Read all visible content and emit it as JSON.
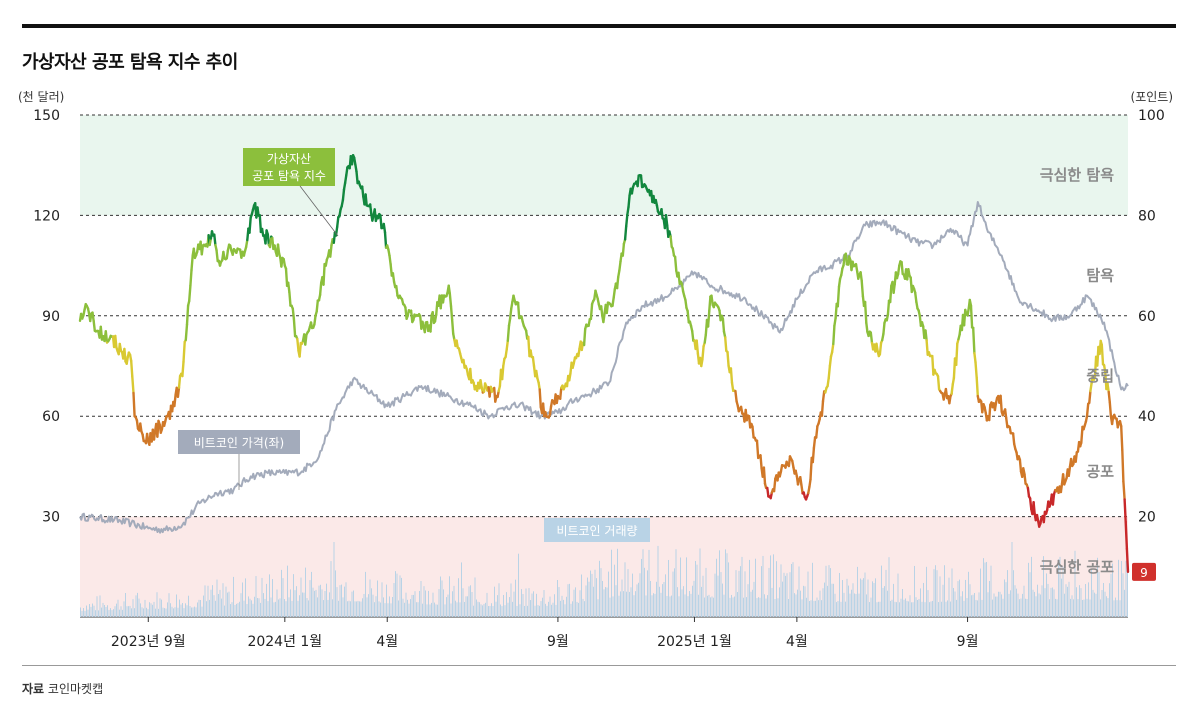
{
  "header": {
    "title": "가상자산 공포 탐욕 지수 추이",
    "unit_left": "(천 달러)",
    "unit_right": "(포인트)"
  },
  "footer": {
    "source_label": "자료",
    "source_value": "코인마켓캡"
  },
  "colors": {
    "extreme_greed_band": "#e9f6ee",
    "extreme_fear_band": "#fbe9e8",
    "extreme_greed": "#12873e",
    "greed": "#8cbf3c",
    "neutral": "#d9c933",
    "fear": "#d07828",
    "extreme_fear": "#c8282a",
    "btc_price": "#a3abbb",
    "volume": "#b9d3e6",
    "badge": "#d0302c"
  },
  "chart_data": {
    "type": "line",
    "title": "가상자산 공포 탐욕 지수 추이",
    "x_tick_labels": [
      "2023년 9월",
      "2024년 1월",
      "4월",
      "9월",
      "2025년 1월",
      "4월",
      "9월"
    ],
    "x_tick_months": [
      2,
      6,
      9,
      14,
      18,
      21,
      26
    ],
    "x_range_months": [
      0,
      30.7
    ],
    "left_axis": {
      "label": "(천 달러)",
      "ticks": [
        30,
        60,
        90,
        120,
        150
      ],
      "range": [
        0,
        150
      ]
    },
    "right_axis": {
      "label": "(포인트)",
      "ticks": [
        20,
        40,
        60,
        80,
        100
      ],
      "range": [
        0,
        100
      ]
    },
    "zones": [
      {
        "name": "극심한 탐욕",
        "from": 75,
        "to": 100
      },
      {
        "name": "탐욕",
        "from": 55,
        "to": 75
      },
      {
        "name": "중립",
        "from": 45,
        "to": 55
      },
      {
        "name": "공포",
        "from": 25,
        "to": 45
      },
      {
        "name": "극심한 공포",
        "from": 0,
        "to": 25
      }
    ],
    "series": [
      {
        "name": "가상자산 공포 탐욕 지수",
        "axis": "right",
        "points": [
          [
            0,
            59
          ],
          [
            0.2,
            62
          ],
          [
            0.5,
            57
          ],
          [
            0.9,
            56
          ],
          [
            1.2,
            53
          ],
          [
            1.5,
            51
          ],
          [
            1.6,
            40
          ],
          [
            1.8,
            37
          ],
          [
            2.0,
            35
          ],
          [
            2.2,
            37
          ],
          [
            2.5,
            39
          ],
          [
            2.7,
            41
          ],
          [
            3.0,
            48
          ],
          [
            3.3,
            72
          ],
          [
            3.6,
            74
          ],
          [
            3.9,
            76
          ],
          [
            4.1,
            70
          ],
          [
            4.4,
            74
          ],
          [
            4.8,
            72
          ],
          [
            5.1,
            82
          ],
          [
            5.4,
            76
          ],
          [
            5.7,
            74
          ],
          [
            6.0,
            70
          ],
          [
            6.2,
            62
          ],
          [
            6.4,
            53
          ],
          [
            6.7,
            57
          ],
          [
            6.9,
            60
          ],
          [
            7.2,
            70
          ],
          [
            7.5,
            76
          ],
          [
            7.8,
            88
          ],
          [
            8.0,
            92
          ],
          [
            8.2,
            86
          ],
          [
            8.4,
            82
          ],
          [
            8.6,
            80
          ],
          [
            8.8,
            80
          ],
          [
            9.0,
            74
          ],
          [
            9.3,
            64
          ],
          [
            9.6,
            60
          ],
          [
            9.9,
            60
          ],
          [
            10.2,
            57
          ],
          [
            10.5,
            62
          ],
          [
            10.8,
            66
          ],
          [
            11.0,
            54
          ],
          [
            11.3,
            50
          ],
          [
            11.6,
            46
          ],
          [
            11.9,
            46
          ],
          [
            12.2,
            44
          ],
          [
            12.4,
            50
          ],
          [
            12.7,
            64
          ],
          [
            13.0,
            58
          ],
          [
            13.3,
            50
          ],
          [
            13.6,
            40
          ],
          [
            13.8,
            42
          ],
          [
            14.0,
            44
          ],
          [
            14.3,
            48
          ],
          [
            14.6,
            52
          ],
          [
            14.9,
            58
          ],
          [
            15.1,
            65
          ],
          [
            15.3,
            60
          ],
          [
            15.6,
            62
          ],
          [
            15.9,
            72
          ],
          [
            16.1,
            84
          ],
          [
            16.4,
            88
          ],
          [
            16.7,
            84
          ],
          [
            16.9,
            82
          ],
          [
            17.2,
            78
          ],
          [
            17.4,
            72
          ],
          [
            17.7,
            64
          ],
          [
            17.9,
            58
          ],
          [
            18.2,
            50
          ],
          [
            18.5,
            64
          ],
          [
            18.8,
            60
          ],
          [
            19.0,
            50
          ],
          [
            19.3,
            41
          ],
          [
            19.6,
            40
          ],
          [
            19.9,
            32
          ],
          [
            20.2,
            24
          ],
          [
            20.5,
            28
          ],
          [
            20.8,
            32
          ],
          [
            21.0,
            28
          ],
          [
            21.3,
            24
          ],
          [
            21.6,
            38
          ],
          [
            21.9,
            46
          ],
          [
            22.1,
            58
          ],
          [
            22.4,
            72
          ],
          [
            22.7,
            70
          ],
          [
            22.9,
            67
          ],
          [
            23.1,
            56
          ],
          [
            23.4,
            52
          ],
          [
            23.7,
            63
          ],
          [
            24.0,
            70
          ],
          [
            24.3,
            68
          ],
          [
            24.6,
            60
          ],
          [
            24.9,
            52
          ],
          [
            25.2,
            45
          ],
          [
            25.5,
            44
          ],
          [
            25.8,
            58
          ],
          [
            26.1,
            62
          ],
          [
            26.3,
            44
          ],
          [
            26.6,
            40
          ],
          [
            26.9,
            44
          ],
          [
            27.2,
            38
          ],
          [
            27.5,
            32
          ],
          [
            27.8,
            24
          ],
          [
            28.1,
            18
          ],
          [
            28.4,
            22
          ],
          [
            28.7,
            26
          ],
          [
            29.0,
            30
          ],
          [
            29.3,
            34
          ],
          [
            29.6,
            45
          ],
          [
            29.9,
            55
          ],
          [
            30.2,
            40
          ],
          [
            30.5,
            38
          ],
          [
            30.7,
            9
          ]
        ]
      },
      {
        "name": "비트코인 가격",
        "axis": "left",
        "points": [
          [
            0,
            30
          ],
          [
            0.5,
            29.5
          ],
          [
            1.0,
            29
          ],
          [
            1.5,
            28
          ],
          [
            2.0,
            26.5
          ],
          [
            2.5,
            26
          ],
          [
            3.0,
            27.5
          ],
          [
            3.5,
            34
          ],
          [
            4.0,
            37
          ],
          [
            4.5,
            38
          ],
          [
            5.0,
            42
          ],
          [
            5.5,
            43
          ],
          [
            6.0,
            43
          ],
          [
            6.5,
            43.5
          ],
          [
            7.0,
            48
          ],
          [
            7.5,
            62
          ],
          [
            8.0,
            71
          ],
          [
            8.5,
            67
          ],
          [
            9.0,
            63
          ],
          [
            9.5,
            66
          ],
          [
            10.0,
            69
          ],
          [
            10.5,
            67
          ],
          [
            11.0,
            65
          ],
          [
            11.5,
            63
          ],
          [
            12.0,
            60
          ],
          [
            12.5,
            63
          ],
          [
            13.0,
            63
          ],
          [
            13.5,
            60
          ],
          [
            14.0,
            61
          ],
          [
            14.5,
            65
          ],
          [
            15.0,
            67
          ],
          [
            15.5,
            70
          ],
          [
            16.0,
            88
          ],
          [
            16.5,
            93
          ],
          [
            17.0,
            95
          ],
          [
            17.5,
            98
          ],
          [
            18.0,
            103
          ],
          [
            18.5,
            99
          ],
          [
            19.0,
            97
          ],
          [
            19.5,
            95
          ],
          [
            20.0,
            90
          ],
          [
            20.5,
            85
          ],
          [
            21.0,
            95
          ],
          [
            21.5,
            103
          ],
          [
            22.0,
            105
          ],
          [
            22.5,
            108
          ],
          [
            23.0,
            117
          ],
          [
            23.5,
            118
          ],
          [
            24.0,
            115
          ],
          [
            24.5,
            112
          ],
          [
            25.0,
            111
          ],
          [
            25.5,
            116
          ],
          [
            26.0,
            111
          ],
          [
            26.3,
            124
          ],
          [
            26.6,
            115
          ],
          [
            27.0,
            108
          ],
          [
            27.5,
            95
          ],
          [
            28.0,
            92
          ],
          [
            28.5,
            89
          ],
          [
            29.0,
            90
          ],
          [
            29.5,
            96
          ],
          [
            30.0,
            88
          ],
          [
            30.3,
            76
          ],
          [
            30.5,
            68
          ],
          [
            30.7,
            69
          ]
        ]
      },
      {
        "name": "비트코인 거래량",
        "axis": "none",
        "relative_levels": [
          [
            0,
            0.12
          ],
          [
            3,
            0.18
          ],
          [
            7,
            0.35
          ],
          [
            9,
            0.28
          ],
          [
            12,
            0.22
          ],
          [
            14,
            0.22
          ],
          [
            16,
            0.45
          ],
          [
            18,
            0.4
          ],
          [
            20,
            0.38
          ],
          [
            22,
            0.3
          ],
          [
            25,
            0.3
          ],
          [
            27,
            0.36
          ],
          [
            30,
            0.34
          ],
          [
            30.7,
            0.34
          ]
        ]
      }
    ],
    "annotations": {
      "fgi_label": "가상자산\n공포 탐욕 지수",
      "btc_label": "비트코인 가격(좌)",
      "volume_label": "비트코인 거래량",
      "latest_value": "9"
    },
    "grid": true
  }
}
